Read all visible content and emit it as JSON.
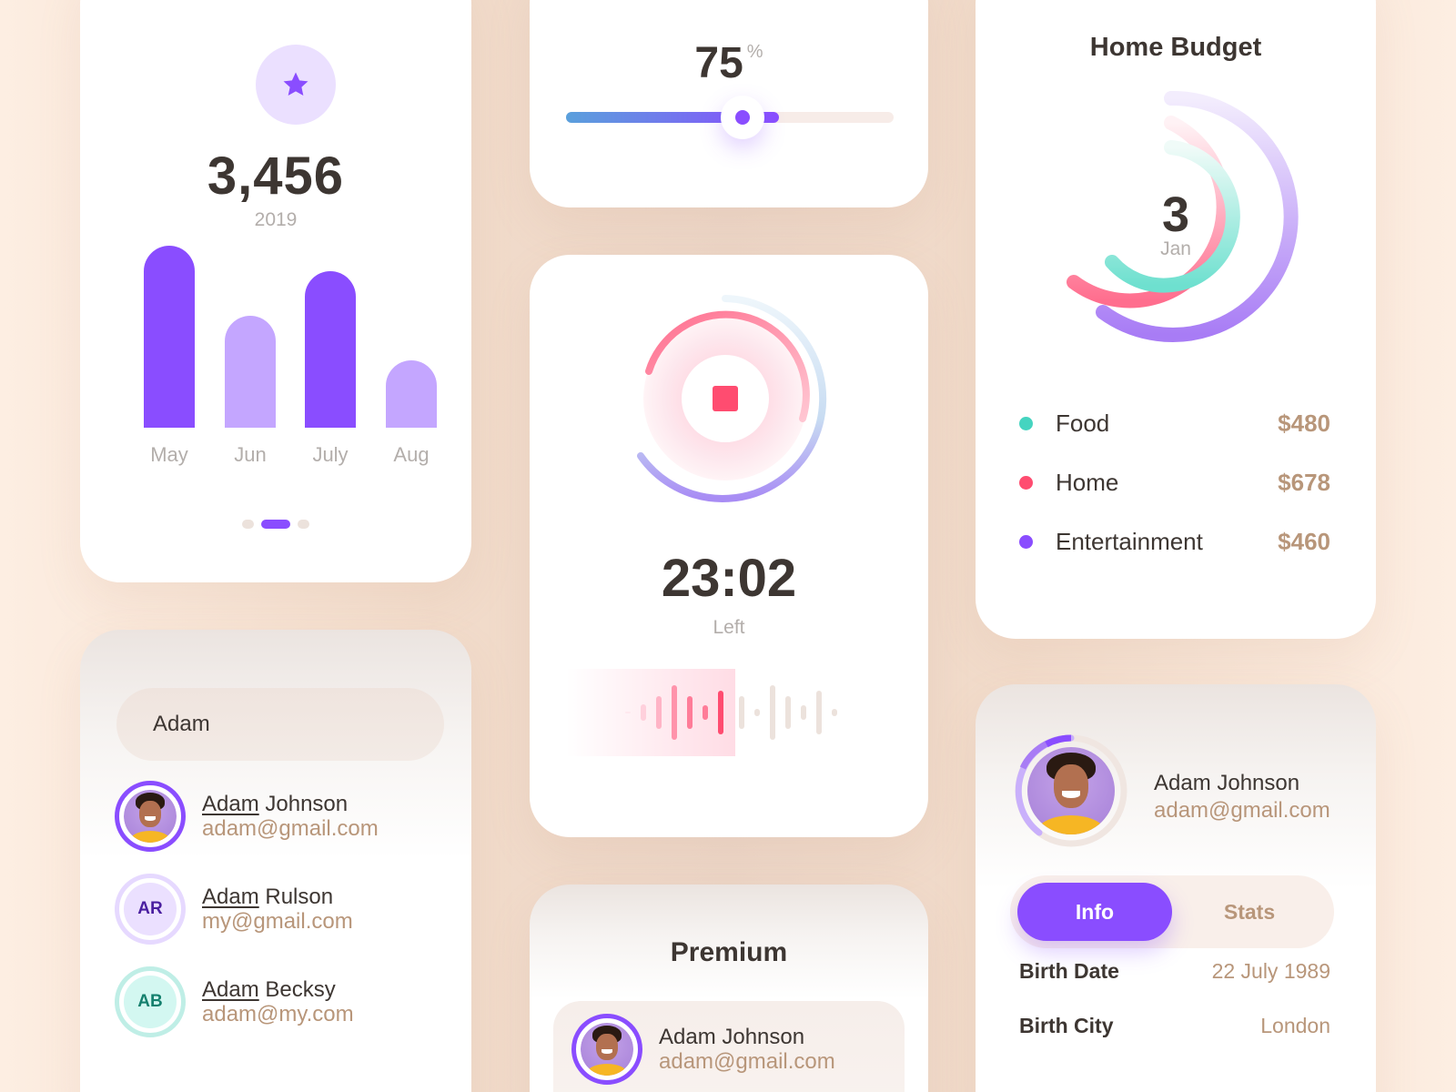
{
  "stats_card": {
    "icon": "star-icon",
    "value": "3,456",
    "year": "2019",
    "pager": {
      "count": 3,
      "active_index": 1
    }
  },
  "chart_data": {
    "type": "bar",
    "title": "3,456",
    "subtitle": "2019",
    "categories": [
      "May",
      "Jun",
      "July",
      "Aug"
    ],
    "values": [
      200,
      123,
      172,
      74
    ],
    "colors": [
      "#8a4dff",
      "#c4a6ff",
      "#8a4dff",
      "#c4a6ff"
    ],
    "xlabel": "",
    "ylabel": "",
    "grid": false
  },
  "slider_card": {
    "value": "75",
    "unit": "%",
    "percent": 75,
    "gradient_start": "#5aa0dc",
    "gradient_end": "#8a4dff"
  },
  "timer_card": {
    "time": "23:02",
    "label": "Left",
    "stop_color": "#ff4c70",
    "waveform": {
      "played": [
        2,
        18,
        36,
        60,
        36,
        16,
        48
      ],
      "remaining": [
        36,
        8,
        60,
        36,
        16,
        48,
        8
      ]
    }
  },
  "budget_card": {
    "title": "Home Budget",
    "day": "3",
    "month": "Jan",
    "items": [
      {
        "name": "Food",
        "amount": "$480",
        "color": "#45d4c0"
      },
      {
        "name": "Home",
        "amount": "$678",
        "color": "#ff4c70"
      },
      {
        "name": "Entertainment",
        "amount": "$460",
        "color": "#8a4dff"
      }
    ]
  },
  "search_card": {
    "query": "Adam",
    "search_icon": "search-icon",
    "results": [
      {
        "match": "Adam",
        "rest": " Johnson",
        "email": "adam@gmail.com",
        "initials": "",
        "type": "photo",
        "ring": "#8a4dff",
        "bg": "#c3a2e8",
        "fg": "#3d3632"
      },
      {
        "match": "Adam",
        "rest": " Rulson",
        "email": "my@gmail.com",
        "initials": "AR",
        "type": "initials",
        "ring": "#e6d9ff",
        "bg": "#ebe0ff",
        "fg": "#4a1fa0"
      },
      {
        "match": "Adam",
        "rest": " Becksy",
        "email": "adam@my.com",
        "initials": "AB",
        "type": "initials",
        "ring": "#bfeee6",
        "bg": "#d3f7f1",
        "fg": "#15806e"
      }
    ]
  },
  "premium_card": {
    "title": "Premium",
    "user": {
      "name": "Adam Johnson",
      "email": "adam@gmail.com"
    }
  },
  "profile_card": {
    "user": {
      "name": "Adam Johnson",
      "email": "adam@gmail.com"
    },
    "tabs": [
      {
        "label": "Info",
        "active": true
      },
      {
        "label": "Stats",
        "active": false
      }
    ],
    "fields": [
      {
        "label": "Birth Date",
        "value": "22 July 1989"
      },
      {
        "label": "Birth City",
        "value": "London"
      }
    ]
  }
}
